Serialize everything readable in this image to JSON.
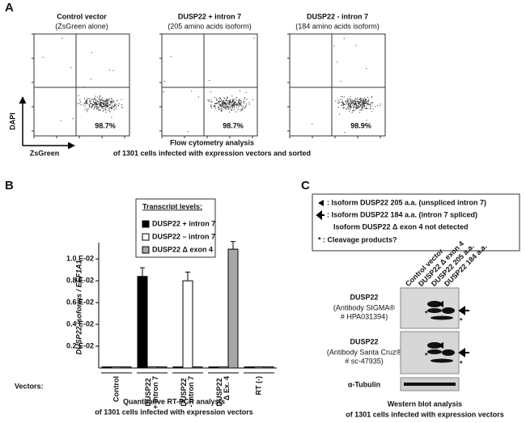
{
  "panels": {
    "a": "A",
    "b": "B",
    "c": "C"
  },
  "flow": {
    "plots": [
      {
        "title": "Control vector",
        "subtitle": "(ZsGreen alone)",
        "percent": "98.7%"
      },
      {
        "title": "DUSP22 + intron 7",
        "subtitle": "(205 amino acids isoform)",
        "percent": "98.7%"
      },
      {
        "title": "DUSP22 - intron 7",
        "subtitle": "(184 amino acids isoform)",
        "percent": "98.9%"
      }
    ],
    "y_axis": "DAPI",
    "x_axis": "ZsGreen",
    "caption": [
      "Flow cytometry analysis",
      "of 1301 cells infected with expression vectors and sorted"
    ]
  },
  "chart_data": {
    "type": "bar",
    "y_label": "DUSP22 isoforms / EEF1A1",
    "legend_title": "Transcript levels:",
    "x_label": "Vectors:",
    "categories": [
      "Control",
      "DUSP22 + intron 7",
      "DUSP22 - intron 7",
      "DUSP22 Δ Ex. 4",
      "RT (-)"
    ],
    "series": [
      {
        "name": "DUSP22 + intron 7",
        "color": "#000000",
        "values": [
          0.0001,
          0.0084,
          0.0001,
          0.0001,
          0.0001
        ],
        "errors": [
          null,
          0.0008,
          null,
          null,
          null
        ]
      },
      {
        "name": "DUSP22 – intron 7",
        "color": "#ffffff",
        "values": [
          0.0001,
          0.0001,
          0.008,
          0.0001,
          0.0001
        ],
        "errors": [
          null,
          null,
          0.0008,
          null,
          null
        ]
      },
      {
        "name": "DUSP22 Δ exon 4",
        "color": "#a6a6a6",
        "values": [
          0.0001,
          0.0001,
          0.0001,
          0.0109,
          0.0001
        ],
        "errors": [
          null,
          null,
          null,
          0.0007,
          null
        ]
      }
    ],
    "ylim": [
      0,
      0.0115
    ],
    "yticks": [
      {
        "value": 0.002,
        "label": "0.2 E-02"
      },
      {
        "value": 0.004,
        "label": "0.4 E-02"
      },
      {
        "value": 0.006,
        "label": "0.6 E-02"
      },
      {
        "value": 0.008,
        "label": "0.8 E-02"
      },
      {
        "value": 0.01,
        "label": "1.0 E-02"
      }
    ],
    "caption": [
      "Quantitative RT-PCR analysis",
      "of 1301 cells infected with expression vectors"
    ]
  },
  "western_blot": {
    "legend": [
      ": Isoform DUSP22 205 a.a. (unspliced intron 7)",
      ": Isoform DUSP22 184 a.a. (intron 7 spliced)",
      "Isoform DUSP22 Δ exon 4 not detected",
      "* : Cleavage products?"
    ],
    "lanes": [
      "Control vector",
      "DUSP22 Δ exon 4",
      "DUSP22 205 a.a.",
      "DUSP22 184 a.a."
    ],
    "blots": [
      {
        "name": "DUSP22",
        "antibody": "(Antibody SIGMA®",
        "ref": "# HPA031394)"
      },
      {
        "name": "DUSP22",
        "antibody": "(Antibody Santa Cruz®",
        "ref": "# sc-47935)"
      }
    ],
    "loading": "α-Tubulin",
    "star": "*",
    "caption": [
      "Western blot analysis",
      "of 1301 cells infected with expression vectors"
    ]
  }
}
